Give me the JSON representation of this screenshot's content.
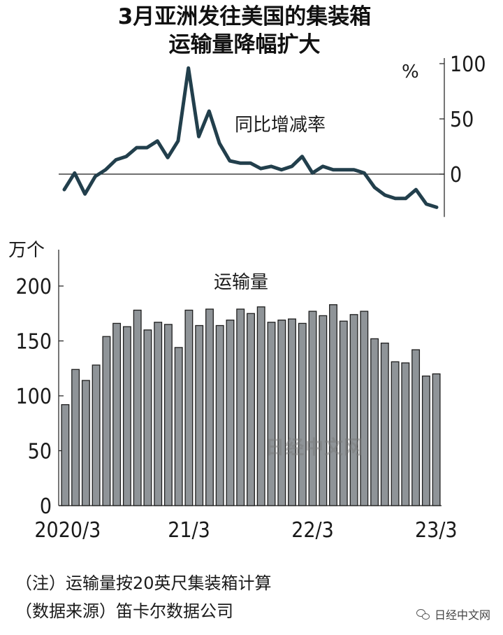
{
  "title": {
    "line1": "3月亚洲发往美国的集装箱",
    "line2": "运输量降幅扩大"
  },
  "notes": {
    "note": "（注）运输量按20英尺集装箱计算",
    "source": "（数据来源）笛卡尔数据公司"
  },
  "watermark": "日经中文网",
  "brand": "日经中文网",
  "colors": {
    "line": "#223f4c",
    "bar_fill": "#8f9498",
    "bar_edge": "#1e1e1e",
    "axis": "#1a1a1a"
  },
  "chart_data": [
    {
      "type": "line",
      "series": [
        {
          "name": "同比增减率",
          "values": [
            -14,
            1,
            -18,
            -2,
            4,
            13,
            16,
            24,
            24,
            30,
            15,
            30,
            96,
            34,
            57,
            28,
            12,
            10,
            10,
            5,
            7,
            4,
            7,
            16,
            1,
            7,
            4,
            4,
            4,
            1,
            -12,
            -19,
            -22,
            -22,
            -14,
            -27,
            -30
          ]
        }
      ],
      "y_unit": "%",
      "y_ticks": [
        0,
        50,
        100
      ],
      "ylim": [
        -35,
        100
      ],
      "y_axis_side": "right"
    },
    {
      "type": "bar",
      "series": [
        {
          "name": "运输量",
          "values": [
            92,
            124,
            114,
            128,
            154,
            166,
            163,
            178,
            160,
            167,
            165,
            144,
            178,
            164,
            179,
            164,
            169,
            179,
            175,
            181,
            167,
            169,
            170,
            166,
            177,
            173,
            183,
            168,
            174,
            177,
            152,
            148,
            131,
            130,
            142,
            118,
            120
          ]
        }
      ],
      "y_unit": "万个",
      "y_ticks": [
        0,
        50,
        100,
        150,
        200
      ],
      "ylim": [
        0,
        200
      ],
      "x_tick_labels": [
        {
          "label": "2020/3",
          "index": 0
        },
        {
          "label": "21/3",
          "index": 12
        },
        {
          "label": "22/3",
          "index": 24
        },
        {
          "label": "23/3",
          "index": 36
        }
      ],
      "y_axis_side": "left"
    }
  ]
}
